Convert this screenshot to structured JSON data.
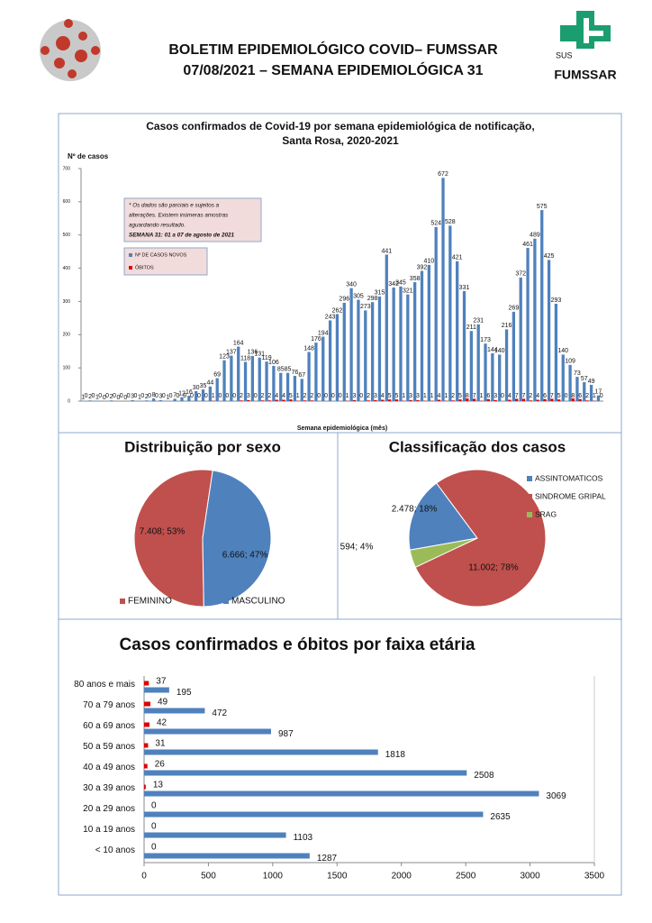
{
  "header": {
    "title_line1": "BOLETIM EPIDEMIOLÓGICO COVID– FUMSSAR",
    "title_line2": "07/08/2021 – SEMANA EPIDEMIOLÓGICA 31",
    "logo_sus": "SUS",
    "logo_name": "FUMSSAR"
  },
  "chart_data": [
    {
      "type": "bar",
      "title": [
        "Casos confirmados de Covid-19 por semana epidemiológica de notificação,",
        "Santa Rosa, 2020-2021"
      ],
      "y_label": "Nº de casos",
      "x_label": "Semana epidemiológica (mês)",
      "note": [
        "* Os dados são parciais e sujeitos a",
        "alterações. Existem inúmeras amostras",
        "aguardando resultado.",
        "SEMANA 31: 01 a 07 de agosto de 2021"
      ],
      "legend": "upper left",
      "categories": [
        null,
        null,
        null,
        null,
        null,
        null,
        null,
        null,
        null,
        null,
        null,
        null,
        null,
        null,
        null,
        null,
        null,
        null,
        null,
        null,
        null,
        null,
        null,
        null,
        null,
        null,
        null,
        null,
        null,
        null,
        null,
        null,
        null,
        null,
        null,
        null,
        null,
        null,
        null,
        null,
        null,
        null,
        null,
        null,
        null,
        null,
        null,
        null,
        null,
        null,
        null,
        null,
        null,
        null,
        null,
        null,
        null,
        null,
        null,
        null,
        null,
        null,
        null,
        null,
        null,
        null,
        null,
        null,
        null,
        null,
        null,
        null,
        null,
        null
      ],
      "series": [
        {
          "name": "Nº DE CASOS NOVOS",
          "color": "#4f81bd",
          "values": [
            1,
            2,
            1,
            0,
            2,
            0,
            0,
            3,
            1,
            2,
            8,
            3,
            1,
            7,
            12,
            16,
            30,
            35,
            44,
            69,
            123,
            137,
            164,
            118,
            136,
            131,
            119,
            106,
            85,
            85,
            76,
            67,
            148,
            176,
            194,
            243,
            262,
            296,
            340,
            305,
            273,
            298,
            315,
            441,
            342,
            345,
            321,
            358,
            392,
            410,
            524,
            672,
            528,
            421,
            331,
            211,
            231,
            173,
            144,
            140,
            216,
            269,
            372,
            461,
            489,
            575,
            425,
            293,
            140,
            109,
            73,
            57,
            49,
            17
          ]
        },
        {
          "name": "ÓBITOS",
          "color": "#e00000",
          "values": [
            0,
            0,
            0,
            0,
            0,
            0,
            0,
            0,
            0,
            0,
            0,
            0,
            0,
            0,
            0,
            0,
            0,
            0,
            1,
            0,
            0,
            0,
            2,
            3,
            0,
            2,
            2,
            4,
            4,
            5,
            1,
            2,
            2,
            0,
            0,
            0,
            0,
            1,
            3,
            0,
            2,
            3,
            4,
            5,
            5,
            1,
            3,
            3,
            1,
            1,
            4,
            1,
            2,
            5,
            8,
            7,
            1,
            6,
            3,
            0,
            4,
            7,
            7,
            2,
            4,
            6,
            7,
            5,
            0,
            8,
            6,
            2,
            1,
            0
          ]
        }
      ],
      "ylim": [
        0,
        700
      ],
      "yticks": [
        0,
        100,
        200,
        300,
        400,
        500,
        600,
        700
      ]
    },
    {
      "type": "pie",
      "title": "Distribuição por sexo",
      "legend": "bottom",
      "categories": [
        "FEMININO",
        "MASCULINO"
      ],
      "values": [
        7408,
        6666
      ],
      "value_labels": [
        "7.408; 53%",
        "6.666; 47%"
      ],
      "colors": [
        "#c0504d",
        "#4f81bd"
      ]
    },
    {
      "type": "pie",
      "title": "Classificação dos casos",
      "legend": "right",
      "categories": [
        "ASSINTOMATICOS",
        "SINDROME GRIPAL",
        "SRAG"
      ],
      "values": [
        2478,
        11002,
        594
      ],
      "value_labels": [
        "2.478; 18%",
        "11.002; 78%",
        "594; 4%"
      ],
      "colors": [
        "#4f81bd",
        "#c0504d",
        "#9bbb59"
      ]
    },
    {
      "type": "barh",
      "title": "Casos confirmados e óbitos  por faixa etária",
      "categories": [
        "< 10 anos",
        "10 a 19 anos",
        "20 a 29 anos",
        "30 a 39 anos",
        "40 a 49 anos",
        "50 a 59 anos",
        "60 a 69 anos",
        "70 a 79 anos",
        "80 anos e mais"
      ],
      "series": [
        {
          "color": "#4f81bd",
          "values": [
            1287,
            1103,
            2635,
            3069,
            2508,
            1818,
            987,
            472,
            195
          ]
        },
        {
          "color": "#e00000",
          "values": [
            0,
            0,
            0,
            13,
            26,
            31,
            42,
            49,
            37
          ]
        }
      ],
      "xlim": [
        0,
        3500
      ],
      "xticks": [
        0,
        500,
        1000,
        1500,
        2000,
        2500,
        3000,
        3500
      ]
    }
  ]
}
